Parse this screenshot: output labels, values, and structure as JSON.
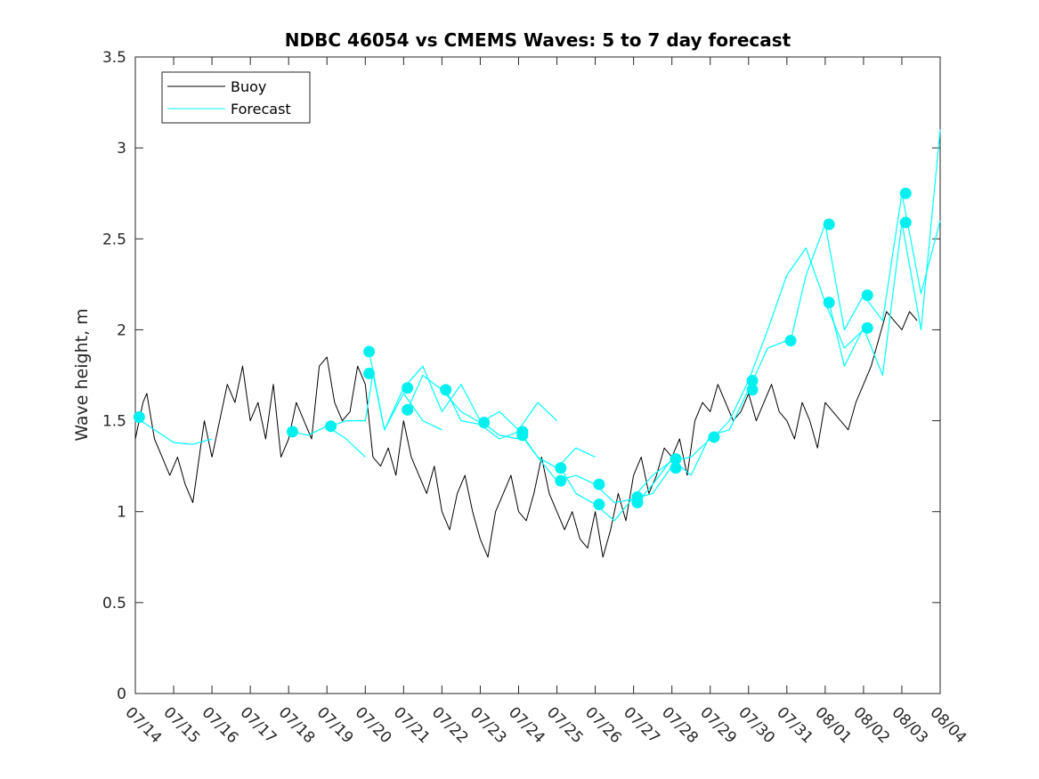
{
  "chart_data": {
    "type": "line",
    "title": "NDBC 46054 vs CMEMS Waves: 5 to 7 day forecast",
    "xlabel": "",
    "ylabel": "Wave height, m",
    "xlim": [
      0,
      21
    ],
    "ylim": [
      0,
      3.5
    ],
    "x_ticks": [
      0,
      1,
      2,
      3,
      4,
      5,
      6,
      7,
      8,
      9,
      10,
      11,
      12,
      13,
      14,
      15,
      16,
      17,
      18,
      19,
      20,
      21
    ],
    "x_tick_labels": [
      "07/14",
      "07/15",
      "07/16",
      "07/17",
      "07/18",
      "07/19",
      "07/20",
      "07/21",
      "07/22",
      "07/23",
      "07/24",
      "07/25",
      "07/26",
      "07/27",
      "07/28",
      "07/29",
      "07/30",
      "07/31",
      "08/01",
      "08/02",
      "08/03",
      "08/04"
    ],
    "y_ticks": [
      0,
      0.5,
      1,
      1.5,
      2,
      2.5,
      3,
      3.5
    ],
    "y_tick_labels": [
      "0",
      "0.5",
      "1",
      "1.5",
      "2",
      "2.5",
      "3",
      "3.5"
    ],
    "legend": {
      "position": "top-left",
      "entries": [
        "Buoy",
        "Forecast"
      ]
    },
    "colors": {
      "buoy": "#000000",
      "forecast": "#00FFFF",
      "marker": "#00F0F0"
    },
    "series": [
      {
        "name": "Buoy",
        "x": [
          0,
          0.2,
          0.3,
          0.5,
          0.7,
          0.9,
          1.1,
          1.3,
          1.5,
          1.6,
          1.8,
          2.0,
          2.2,
          2.4,
          2.6,
          2.8,
          3.0,
          3.2,
          3.4,
          3.6,
          3.8,
          4.0,
          4.2,
          4.4,
          4.6,
          4.8,
          5.0,
          5.2,
          5.4,
          5.6,
          5.8,
          6.0,
          6.2,
          6.4,
          6.6,
          6.8,
          7.0,
          7.2,
          7.4,
          7.6,
          7.8,
          8.0,
          8.2,
          8.4,
          8.6,
          8.8,
          9.0,
          9.2,
          9.4,
          9.6,
          9.8,
          10.0,
          10.2,
          10.4,
          10.6,
          10.8,
          11.0,
          11.2,
          11.4,
          11.6,
          11.8,
          12.0,
          12.2,
          12.4,
          12.6,
          12.8,
          13.0,
          13.2,
          13.4,
          13.6,
          13.8,
          14.0,
          14.2,
          14.4,
          14.6,
          14.8,
          15.0,
          15.2,
          15.4,
          15.6,
          15.8,
          16.0,
          16.2,
          16.4,
          16.6,
          16.8,
          17.0,
          17.2,
          17.4,
          17.6,
          17.8,
          18.0,
          18.2,
          18.4,
          18.6,
          18.8,
          19.0,
          19.2,
          19.4,
          19.6,
          19.8,
          20.0,
          20.2,
          20.4
        ],
        "values": [
          1.4,
          1.6,
          1.65,
          1.4,
          1.3,
          1.2,
          1.3,
          1.15,
          1.05,
          1.2,
          1.5,
          1.3,
          1.5,
          1.7,
          1.6,
          1.8,
          1.5,
          1.6,
          1.4,
          1.7,
          1.3,
          1.4,
          1.6,
          1.5,
          1.4,
          1.8,
          1.85,
          1.6,
          1.5,
          1.55,
          1.8,
          1.7,
          1.3,
          1.25,
          1.35,
          1.2,
          1.5,
          1.3,
          1.2,
          1.1,
          1.25,
          1.0,
          0.9,
          1.1,
          1.2,
          1.0,
          0.85,
          0.75,
          1.0,
          1.1,
          1.2,
          1.0,
          0.95,
          1.1,
          1.3,
          1.1,
          1.0,
          0.9,
          1.0,
          0.85,
          0.8,
          1.0,
          0.75,
          0.9,
          1.1,
          0.95,
          1.2,
          1.3,
          1.1,
          1.2,
          1.35,
          1.3,
          1.4,
          1.2,
          1.5,
          1.6,
          1.55,
          1.7,
          1.6,
          1.5,
          1.55,
          1.65,
          1.5,
          1.6,
          1.7,
          1.55,
          1.5,
          1.4,
          1.6,
          1.5,
          1.35,
          1.6,
          1.55,
          1.5,
          1.45,
          1.6,
          1.7,
          1.8,
          1.95,
          2.1,
          2.05,
          2.0,
          2.1,
          2.05
        ]
      },
      {
        "name": "Forecast",
        "x": [
          0,
          0.5,
          1.0,
          1.5,
          2.0
        ],
        "values": [
          1.52,
          1.45,
          1.38,
          1.37,
          1.4
        ]
      },
      {
        "name": "Forecast",
        "x": [
          4.1,
          4.5,
          5.0,
          5.5,
          6.0
        ],
        "values": [
          1.44,
          1.42,
          1.47,
          1.4,
          1.3
        ]
      },
      {
        "name": "Forecast",
        "x": [
          5.1,
          5.5,
          6.0,
          6.2,
          6.5,
          7.0,
          7.5,
          8.0
        ],
        "values": [
          1.47,
          1.5,
          1.5,
          1.76,
          1.45,
          1.65,
          1.5,
          1.45
        ]
      },
      {
        "name": "Forecast",
        "x": [
          6.1,
          6.5,
          7.0,
          7.5,
          8.0,
          8.5,
          9.0,
          9.5,
          10.0
        ],
        "values": [
          1.88,
          1.45,
          1.68,
          1.8,
          1.55,
          1.7,
          1.5,
          1.42,
          1.4
        ]
      },
      {
        "name": "Forecast",
        "x": [
          7.1,
          7.5,
          8.0,
          8.5,
          9.0,
          9.5,
          10.0,
          10.5,
          11.0
        ],
        "values": [
          1.56,
          1.75,
          1.67,
          1.55,
          1.49,
          1.55,
          1.45,
          1.6,
          1.5
        ]
      },
      {
        "name": "Forecast",
        "x": [
          8.1,
          8.5,
          9.0,
          9.5,
          10.0,
          10.5,
          11.0,
          11.5,
          12.0
        ],
        "values": [
          1.67,
          1.5,
          1.48,
          1.4,
          1.44,
          1.3,
          1.24,
          1.35,
          1.3
        ]
      },
      {
        "name": "Forecast",
        "x": [
          10.1,
          10.5,
          11.0,
          11.5,
          12.0,
          12.5,
          13.0,
          13.5,
          14.0
        ],
        "values": [
          1.42,
          1.3,
          1.17,
          1.2,
          1.15,
          1.05,
          1.07,
          1.1,
          1.25
        ]
      },
      {
        "name": "Forecast",
        "x": [
          11.1,
          11.5,
          12.0,
          12.5,
          13.0,
          13.5,
          14.0,
          14.5,
          15.0
        ],
        "values": [
          1.24,
          1.1,
          1.04,
          0.95,
          1.08,
          1.2,
          1.28,
          1.3,
          1.4
        ]
      },
      {
        "name": "Forecast",
        "x": [
          13.1,
          13.5,
          14.0,
          14.5,
          15.0,
          15.5,
          16.0,
          16.5,
          17.0
        ],
        "values": [
          1.05,
          1.15,
          1.29,
          1.2,
          1.42,
          1.45,
          1.67,
          1.9,
          1.94
        ]
      },
      {
        "name": "Forecast",
        "x": [
          15.1,
          15.5,
          16.0,
          16.5,
          17.0,
          17.5,
          18.0,
          18.5,
          19.0
        ],
        "values": [
          1.41,
          1.5,
          1.72,
          2.0,
          2.3,
          2.45,
          2.15,
          1.9,
          2.0
        ]
      },
      {
        "name": "Forecast",
        "x": [
          17.1,
          17.5,
          18.0,
          18.5,
          19.0,
          19.5,
          20.0,
          20.5,
          21.0
        ],
        "values": [
          1.94,
          2.3,
          2.58,
          2.0,
          2.19,
          2.05,
          2.75,
          2.2,
          2.6
        ]
      },
      {
        "name": "Forecast",
        "x": [
          18.1,
          18.5,
          19.0,
          19.5,
          20.0,
          20.5,
          21.0
        ],
        "values": [
          2.15,
          1.8,
          2.01,
          1.75,
          2.59,
          2.0,
          3.1
        ]
      }
    ],
    "markers": [
      {
        "x": 0.1,
        "y": 1.52
      },
      {
        "x": 4.1,
        "y": 1.44
      },
      {
        "x": 5.1,
        "y": 1.47
      },
      {
        "x": 6.1,
        "y": 1.88
      },
      {
        "x": 6.1,
        "y": 1.76
      },
      {
        "x": 7.1,
        "y": 1.68
      },
      {
        "x": 7.1,
        "y": 1.56
      },
      {
        "x": 8.1,
        "y": 1.67
      },
      {
        "x": 9.1,
        "y": 1.49
      },
      {
        "x": 10.1,
        "y": 1.44
      },
      {
        "x": 10.1,
        "y": 1.42
      },
      {
        "x": 11.1,
        "y": 1.24
      },
      {
        "x": 11.1,
        "y": 1.17
      },
      {
        "x": 12.1,
        "y": 1.15
      },
      {
        "x": 12.1,
        "y": 1.04
      },
      {
        "x": 13.1,
        "y": 1.08
      },
      {
        "x": 13.1,
        "y": 1.05
      },
      {
        "x": 14.1,
        "y": 1.29
      },
      {
        "x": 14.1,
        "y": 1.24
      },
      {
        "x": 15.1,
        "y": 1.41
      },
      {
        "x": 16.1,
        "y": 1.72
      },
      {
        "x": 16.1,
        "y": 1.67
      },
      {
        "x": 17.1,
        "y": 1.94
      },
      {
        "x": 18.1,
        "y": 2.58
      },
      {
        "x": 18.1,
        "y": 2.15
      },
      {
        "x": 19.1,
        "y": 2.19
      },
      {
        "x": 19.1,
        "y": 2.01
      },
      {
        "x": 20.1,
        "y": 2.75
      },
      {
        "x": 20.1,
        "y": 2.59
      }
    ]
  }
}
